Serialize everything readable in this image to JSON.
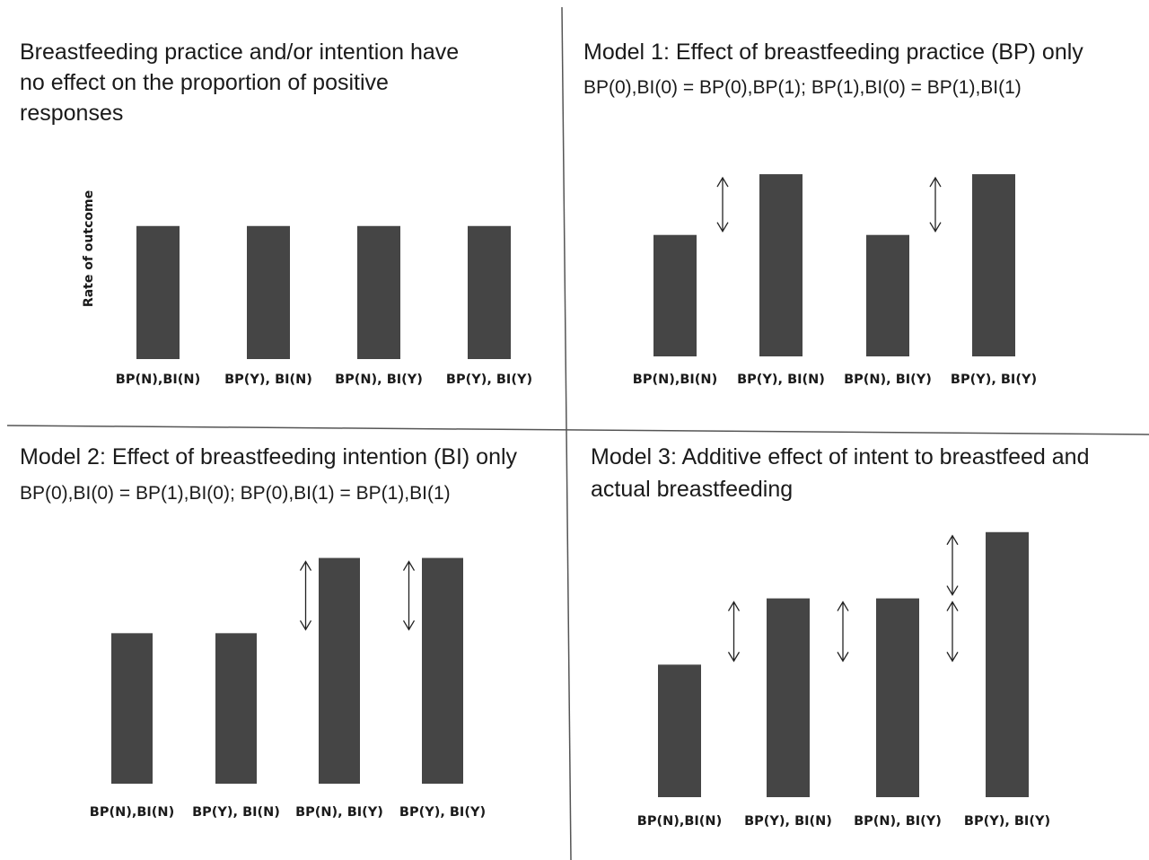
{
  "chart_data": [
    {
      "type": "bar",
      "title": [
        "Breastfeeding practice and/or intention have",
        "no effect on the proportion of positive",
        "responses"
      ],
      "subtitle": "",
      "ylabel": "Rate of outcome",
      "xlabel": "",
      "categories": [
        "BP(N),BI(N)",
        "BP(Y), BI(N)",
        "BP(N), BI(Y)",
        "BP(Y), BI(Y)"
      ],
      "values": [
        1.0,
        1.0,
        1.0,
        1.0
      ],
      "ylim": [
        0,
        1.7
      ],
      "grid": false,
      "arrows": []
    },
    {
      "type": "bar",
      "title": [
        "Model 1:  Effect of breastfeeding practice  (BP) only"
      ],
      "subtitle": "BP(0),BI(0) = BP(0),BP(1); BP(1),BI(0) = BP(1),BI(1)",
      "ylabel": "",
      "xlabel": "",
      "categories": [
        "BP(N),BI(N)",
        "BP(Y), BI(N)",
        "BP(N), BI(Y)",
        "BP(Y), BI(Y)"
      ],
      "values": [
        1.0,
        1.5,
        1.0,
        1.5
      ],
      "ylim": [
        0,
        1.7
      ],
      "grid": false,
      "arrows": [
        {
          "after": 0,
          "from": 1.0,
          "to": 1.5
        },
        {
          "after": 2,
          "from": 1.0,
          "to": 1.5
        }
      ]
    },
    {
      "type": "bar",
      "title": [
        "Model 2:  Effect of breastfeeding intention (BI) only"
      ],
      "subtitle": "BP(0),BI(0) = BP(1),BI(0); BP(0),BI(1) = BP(1),BI(1)",
      "ylabel": "",
      "xlabel": "",
      "categories": [
        "BP(N),BI(N)",
        "BP(Y), BI(N)",
        "BP(N), BI(Y)",
        "BP(Y), BI(Y)"
      ],
      "values": [
        1.0,
        1.0,
        1.5,
        1.5
      ],
      "ylim": [
        0,
        1.7
      ],
      "grid": false,
      "arrows": [
        {
          "after": 1,
          "from": 1.0,
          "to": 1.5
        },
        {
          "after": 2,
          "from": 1.0,
          "to": 1.5
        }
      ]
    },
    {
      "type": "bar",
      "title": [
        "Model 3:  Additive effect of intent to breastfeed and",
        "actual breastfeeding"
      ],
      "subtitle": "",
      "ylabel": "",
      "xlabel": "",
      "categories": [
        "BP(N),BI(N)",
        "BP(Y), BI(N)",
        "BP(N), BI(Y)",
        "BP(Y), BI(Y)"
      ],
      "values": [
        1.0,
        1.5,
        1.5,
        2.0
      ],
      "ylim": [
        0,
        2.1
      ],
      "grid": false,
      "arrows": [
        {
          "after": 0,
          "from": 1.0,
          "to": 1.5
        },
        {
          "after": 1,
          "from": 1.0,
          "to": 1.5
        },
        {
          "after": 2,
          "from": 1.5,
          "to": 2.0
        },
        {
          "after": 2,
          "from": 1.0,
          "to": 1.5
        }
      ]
    }
  ],
  "colors": {
    "bar": "#454545",
    "text": "#1a1a1a",
    "divider": "#555555",
    "arrow": "#222222"
  }
}
